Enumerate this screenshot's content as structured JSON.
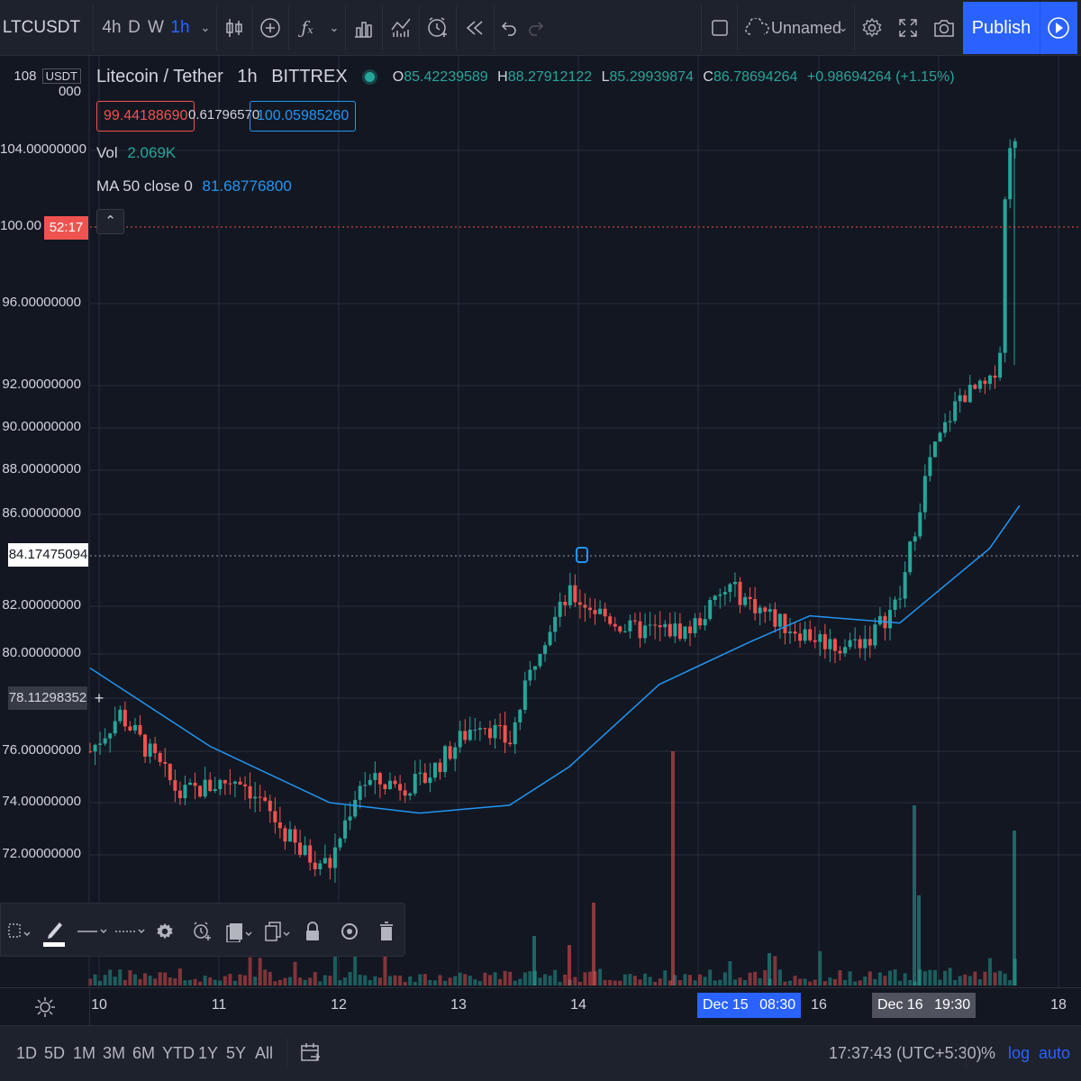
{
  "toolbar": {
    "symbol": "LTCUSDT",
    "intervals": [
      "4h",
      "D",
      "W",
      "1h"
    ],
    "active_interval": "1h",
    "layout_name": "Unnamed",
    "publish_label": "Publish"
  },
  "legend": {
    "title": "Litecoin / Tether",
    "interval": "1h",
    "exchange": "BITTREX",
    "o_key": "O",
    "o_val": "85.42239589",
    "h_key": "H",
    "h_val": "88.27912122",
    "l_key": "L",
    "l_val": "85.29939874",
    "c_key": "C",
    "c_val": "86.78694264",
    "change": "+0.98694264 (+1.15%)",
    "bid": "99.44188690",
    "spread": "0.61796570",
    "ask": "100.05985260",
    "vol_label": "Vol",
    "vol_value": "2.069K",
    "ma_label": "MA 50 close 0",
    "ma_value": "81.68776800"
  },
  "price_scale": {
    "currency_badge": "USDT",
    "top_label_left": "108",
    "top_label_right": "000",
    "labels": [
      "104.00000000",
      "96.00000000",
      "92.00000000",
      "90.00000000",
      "88.00000000",
      "86.00000000",
      "82.00000000",
      "80.00000000",
      "76.00000000",
      "74.00000000",
      "72.00000000"
    ],
    "last_price": "100.00",
    "countdown": "52:17",
    "crosshair_price": "84.17475094",
    "marker_price": "78.11298352"
  },
  "time_axis": {
    "labels": [
      "10",
      "11",
      "12",
      "13",
      "14",
      "16",
      "18"
    ],
    "highlight_date": "Dec 15",
    "highlight_time": "08:30",
    "crosshair_date": "Dec 16",
    "crosshair_time": "19:30"
  },
  "bottom_bar": {
    "ranges": [
      "1D",
      "5D",
      "1M",
      "3M",
      "6M",
      "YTD",
      "1Y",
      "5Y",
      "All"
    ],
    "clock": "17:37:43 (UTC+5:30)",
    "percent": "%",
    "log": "log",
    "auto": "auto"
  },
  "colors": {
    "up": "#26a69a",
    "down": "#ef5350",
    "ma": "#2196f3",
    "accent": "#2962ff",
    "background": "#131722"
  },
  "chart_data": {
    "type": "candlestick",
    "title": "Litecoin / Tether",
    "y_range": [
      70,
      108
    ],
    "x_range": [
      "Dec 10",
      "Dec 18"
    ],
    "x_ticks": [
      "10",
      "11",
      "12",
      "13",
      "14",
      "15",
      "16",
      "17",
      "18"
    ],
    "key_points": [
      {
        "t": "Dec 10 00:00",
        "price": 76.0
      },
      {
        "t": "Dec 10 06:00",
        "price": 77.5
      },
      {
        "t": "Dec 10 18:00",
        "price": 74.3
      },
      {
        "t": "Dec 11 06:00",
        "price": 75.0
      },
      {
        "t": "Dec 11 18:00",
        "price": 72.1
      },
      {
        "t": "Dec 12 00:00",
        "price": 71.6
      },
      {
        "t": "Dec 12 06:00",
        "price": 74.8
      },
      {
        "t": "Dec 12 18:00",
        "price": 74.7
      },
      {
        "t": "Dec 13 06:00",
        "price": 77.3
      },
      {
        "t": "Dec 13 12:00",
        "price": 76.3
      },
      {
        "t": "Dec 13 18:00",
        "price": 80.4
      },
      {
        "t": "Dec 14 00:00",
        "price": 82.5
      },
      {
        "t": "Dec 14 12:00",
        "price": 81.0
      },
      {
        "t": "Dec 15 00:00",
        "price": 81.0
      },
      {
        "t": "Dec 15 08:00",
        "price": 82.8
      },
      {
        "t": "Dec 15 18:00",
        "price": 81.3
      },
      {
        "t": "Dec 16 06:00",
        "price": 80.3
      },
      {
        "t": "Dec 16 12:00",
        "price": 80.7
      },
      {
        "t": "Dec 16 18:00",
        "price": 82.3
      },
      {
        "t": "Dec 17 00:00",
        "price": 88.5
      },
      {
        "t": "Dec 17 06:00",
        "price": 91.5
      },
      {
        "t": "Dec 17 12:00",
        "price": 92.0
      },
      {
        "t": "Dec 17 14:00",
        "price": 93.5
      },
      {
        "t": "Dec 17 16:00",
        "price": 100.5
      },
      {
        "t": "Dec 17 18:00",
        "price": 100.0
      }
    ],
    "ma50": [
      {
        "t": "Dec 10 00:00",
        "price": 79.4
      },
      {
        "t": "Dec 11 00:00",
        "price": 76.2
      },
      {
        "t": "Dec 12 00:00",
        "price": 74.0
      },
      {
        "t": "Dec 12 18:00",
        "price": 73.6
      },
      {
        "t": "Dec 13 12:00",
        "price": 73.9
      },
      {
        "t": "Dec 14 00:00",
        "price": 75.4
      },
      {
        "t": "Dec 14 18:00",
        "price": 78.7
      },
      {
        "t": "Dec 15 12:00",
        "price": 80.5
      },
      {
        "t": "Dec 16 00:00",
        "price": 81.6
      },
      {
        "t": "Dec 16 18:00",
        "price": 81.3
      },
      {
        "t": "Dec 17 12:00",
        "price": 84.5
      },
      {
        "t": "Dec 17 18:00",
        "price": 86.4
      }
    ]
  }
}
